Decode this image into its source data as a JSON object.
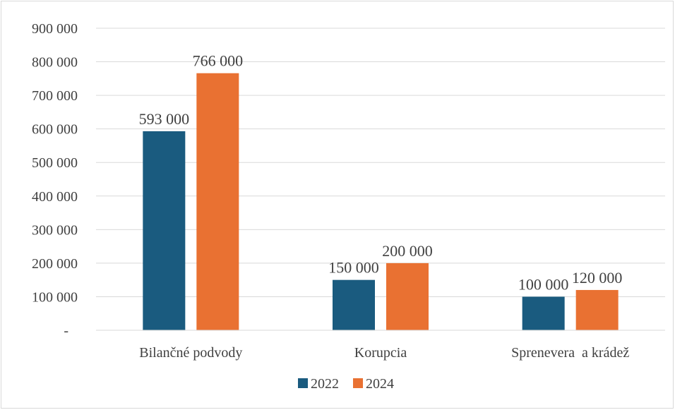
{
  "chart_data": {
    "type": "bar",
    "title": "",
    "xlabel": "",
    "ylabel": "",
    "categories": [
      "Bilančné podvody",
      "Korupcia",
      "Sprenevera  a krádež"
    ],
    "series": [
      {
        "name": "2022",
        "color": "#1a5b7f",
        "values": [
          593000,
          150000,
          100000
        ],
        "labels": [
          "593 000",
          "150 000",
          "100 000"
        ]
      },
      {
        "name": "2024",
        "color": "#e97132",
        "values": [
          766000,
          200000,
          120000
        ],
        "labels": [
          "766 000",
          "200 000",
          "120 000"
        ]
      }
    ],
    "ylim": [
      0,
      900000
    ],
    "yticks": [
      0,
      100000,
      200000,
      300000,
      400000,
      500000,
      600000,
      700000,
      800000,
      900000
    ],
    "ytick_labels": [
      "-",
      "100 000",
      "200 000",
      "300 000",
      "400 000",
      "500 000",
      "600 000",
      "700 000",
      "800 000",
      "900 000"
    ],
    "grid": true,
    "legend_position": "bottom"
  }
}
